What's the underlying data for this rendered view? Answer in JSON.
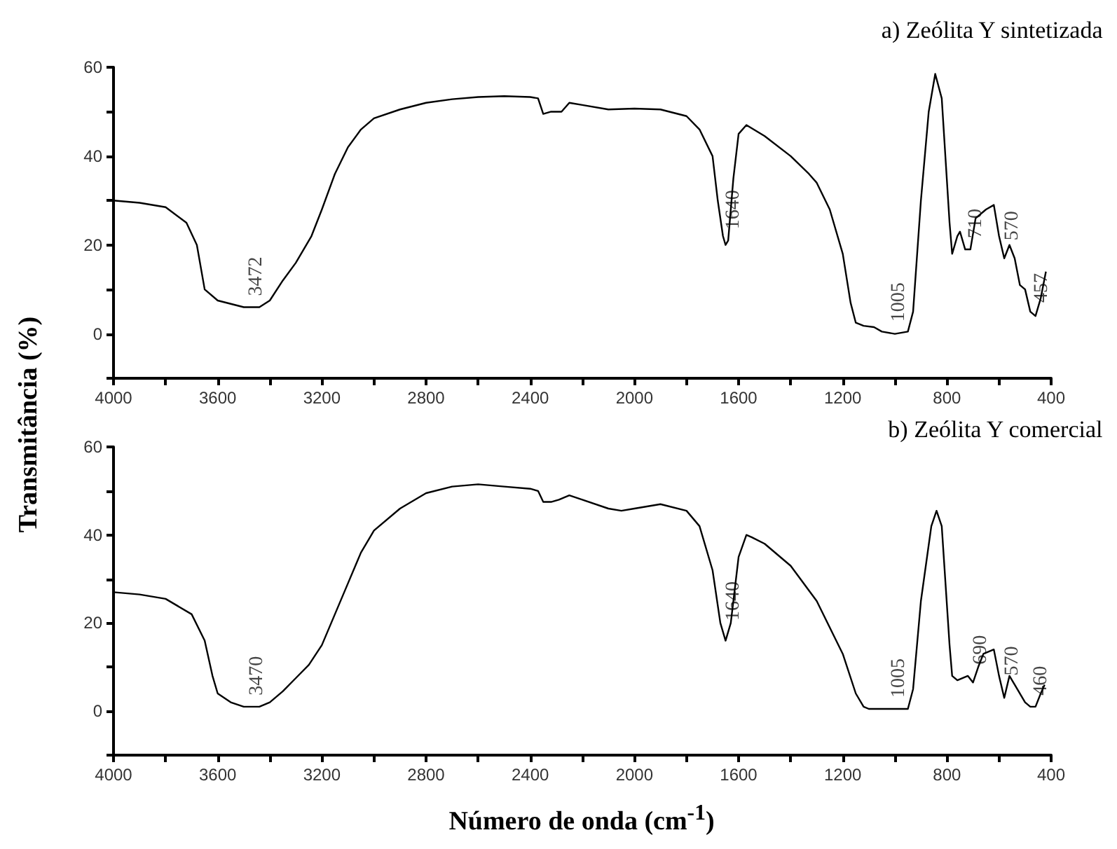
{
  "chart_data": [
    {
      "type": "line",
      "title": "a) Zeólita Y sintetizada",
      "ylabel": "Transmitância (%)",
      "xlim": [
        4000,
        400
      ],
      "ylim": [
        -10,
        60
      ],
      "xticks": [
        4000,
        {
          "value": 3800,
          "label": null
        },
        3600,
        {
          "value": 3400,
          "label": null
        },
        3200,
        {
          "value": 3000,
          "label": null
        },
        2800,
        {
          "value": 2600,
          "label": null
        },
        2400,
        {
          "value": 2200,
          "label": null
        },
        2000,
        {
          "value": 1800,
          "label": null
        },
        1600,
        {
          "value": 1400,
          "label": null
        },
        1200,
        {
          "value": 1000,
          "label": null
        },
        800,
        {
          "value": 600,
          "label": null
        },
        400
      ],
      "yticks": [
        {
          "value": -10,
          "label": null
        },
        0,
        {
          "value": 10,
          "label": null
        },
        20,
        {
          "value": 30,
          "label": null
        },
        40,
        {
          "value": 50,
          "label": null
        },
        60
      ],
      "series": [
        {
          "color": "#000000",
          "x": [
            4000,
            3900,
            3800,
            3720,
            3680,
            3650,
            3600,
            3500,
            3440,
            3400,
            3350,
            3300,
            3240,
            3200,
            3150,
            3100,
            3050,
            3000,
            2900,
            2800,
            2700,
            2600,
            2500,
            2400,
            2370,
            2350,
            2320,
            2280,
            2250,
            2200,
            2100,
            2000,
            1900,
            1800,
            1750,
            1700,
            1680,
            1660,
            1650,
            1640,
            1620,
            1600,
            1570,
            1500,
            1400,
            1330,
            1300,
            1250,
            1200,
            1170,
            1150,
            1120,
            1080,
            1050,
            1000,
            950,
            930,
            900,
            870,
            845,
            820,
            790,
            780,
            760,
            750,
            730,
            710,
            690,
            650,
            620,
            600,
            580,
            560,
            540,
            520,
            500,
            480,
            460,
            440,
            420
          ],
          "values": [
            30,
            29.5,
            28.5,
            25,
            20,
            10,
            7.5,
            6,
            6,
            7.5,
            12,
            16,
            22,
            28,
            36,
            42,
            46,
            48.5,
            50.5,
            52,
            52.8,
            53.3,
            53.5,
            53.3,
            53,
            49.5,
            50,
            50,
            52,
            51.5,
            50.5,
            50.7,
            50.5,
            49,
            46,
            40,
            30,
            22,
            20,
            21,
            35,
            45,
            47,
            44.5,
            40,
            36,
            34,
            28,
            18,
            7,
            2.5,
            1.8,
            1.5,
            0.5,
            0,
            0.5,
            5,
            30,
            50,
            58.5,
            53,
            25,
            18,
            22,
            23,
            19,
            19,
            26,
            28,
            29,
            22,
            17,
            20,
            17,
            11,
            10,
            5,
            4,
            8,
            14
          ]
        }
      ],
      "annotations": [
        {
          "text": "3472",
          "x": 3472,
          "y": 6
        },
        {
          "text": "1640",
          "x": 1640,
          "y": 21
        },
        {
          "text": "1005",
          "x": 1005,
          "y": 0.2
        },
        {
          "text": "710",
          "x": 710,
          "y": 19
        },
        {
          "text": "570",
          "x": 570,
          "y": 18.5
        },
        {
          "text": "457",
          "x": 457,
          "y": 4.5
        }
      ]
    },
    {
      "type": "line",
      "title": "b) Zeólita Y comercial",
      "xlabel": "Número de onda (cm$^{-1}$)",
      "xlim": [
        4000,
        400
      ],
      "ylim": [
        -10,
        60
      ],
      "xticks": [
        4000,
        {
          "value": 3800,
          "label": null
        },
        3600,
        {
          "value": 3400,
          "label": null
        },
        3200,
        {
          "value": 3000,
          "label": null
        },
        2800,
        {
          "value": 2600,
          "label": null
        },
        2400,
        {
          "value": 2200,
          "label": null
        },
        2000,
        {
          "value": 1800,
          "label": null
        },
        1600,
        {
          "value": 1400,
          "label": null
        },
        1200,
        {
          "value": 1000,
          "label": null
        },
        800,
        {
          "value": 600,
          "label": null
        },
        400
      ],
      "yticks": [
        {
          "value": -10,
          "label": null
        },
        0,
        {
          "value": 10,
          "label": null
        },
        20,
        {
          "value": 30,
          "label": null
        },
        40,
        {
          "value": 50,
          "label": null
        },
        60
      ],
      "series": [
        {
          "color": "#000000",
          "x": [
            4000,
            3900,
            3800,
            3700,
            3650,
            3620,
            3600,
            3550,
            3500,
            3440,
            3400,
            3350,
            3300,
            3250,
            3200,
            3150,
            3100,
            3050,
            3000,
            2900,
            2800,
            2700,
            2600,
            2500,
            2400,
            2370,
            2350,
            2320,
            2290,
            2250,
            2200,
            2100,
            2050,
            2000,
            1900,
            1800,
            1750,
            1700,
            1670,
            1650,
            1630,
            1600,
            1570,
            1550,
            1500,
            1400,
            1300,
            1200,
            1150,
            1120,
            1100,
            1000,
            950,
            930,
            900,
            860,
            840,
            820,
            790,
            780,
            760,
            720,
            700,
            680,
            660,
            620,
            600,
            580,
            560,
            540,
            500,
            480,
            460,
            440,
            425
          ],
          "values": [
            27,
            26.5,
            25.5,
            22,
            16,
            8,
            4,
            2,
            1,
            1,
            2,
            4.5,
            7.5,
            10.5,
            15,
            22,
            29,
            36,
            41,
            46,
            49.5,
            51,
            51.5,
            51,
            50.5,
            50,
            47.5,
            47.5,
            48,
            49,
            48,
            46,
            45.5,
            46,
            47,
            45.5,
            42,
            32,
            20,
            16,
            20,
            35,
            40,
            39.5,
            38,
            33,
            25,
            13,
            4,
            1,
            0.5,
            0.5,
            0.5,
            5,
            25,
            42,
            45.5,
            42,
            15,
            8,
            7,
            8,
            6.5,
            10,
            13,
            14,
            8,
            3,
            8,
            6,
            2,
            1,
            1,
            4,
            6
          ]
        }
      ],
      "annotations": [
        {
          "text": "3470",
          "x": 3470,
          "y": 1
        },
        {
          "text": "1640",
          "x": 1640,
          "y": 18
        },
        {
          "text": "1005",
          "x": 1005,
          "y": 0.5
        },
        {
          "text": "690",
          "x": 690,
          "y": 8
        },
        {
          "text": "570",
          "x": 570,
          "y": 5.5
        },
        {
          "text": "460",
          "x": 460,
          "y": 1
        }
      ]
    }
  ]
}
